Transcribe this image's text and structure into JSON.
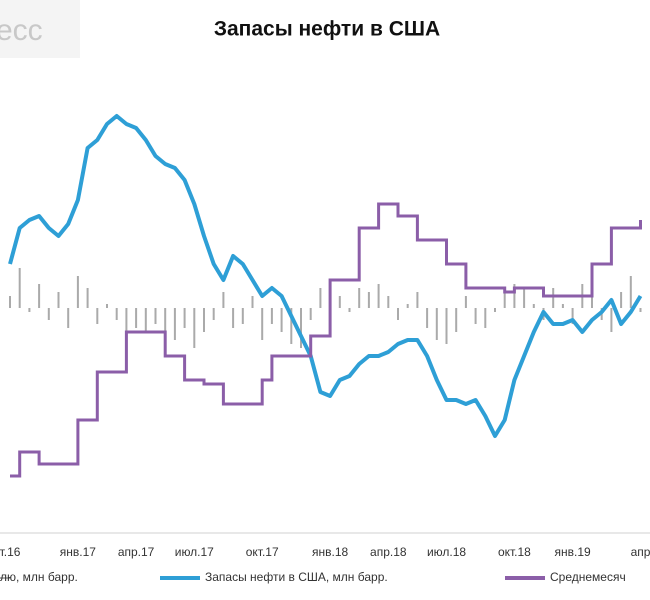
{
  "chart_data": {
    "type": "line",
    "title": "Запасы нефти в США",
    "watermark": "есс",
    "categories": [
      "т.16",
      null,
      null,
      null,
      null,
      null,
      null,
      "янв.17",
      null,
      null,
      null,
      null,
      null,
      "апр.17",
      null,
      null,
      null,
      null,
      null,
      "июл.17",
      null,
      null,
      null,
      null,
      null,
      null,
      "окт.17",
      null,
      null,
      null,
      null,
      null,
      null,
      "янв.18",
      null,
      null,
      null,
      null,
      null,
      "апр.18",
      null,
      null,
      null,
      null,
      null,
      "июл.18",
      null,
      null,
      null,
      null,
      null,
      null,
      "окт.18",
      null,
      null,
      null,
      null,
      null,
      "янв.19",
      null,
      null,
      null,
      null,
      null,
      null,
      "апр"
    ],
    "ylim": [
      -55,
      55
    ],
    "series": [
      {
        "name": "лю, млн барр.",
        "type": "bar",
        "color": "#aaaaaa",
        "values": [
          3,
          10,
          -1,
          6,
          -3,
          4,
          -5,
          8,
          5,
          -4,
          1,
          -3,
          -8,
          -5,
          -6,
          -4,
          -9,
          -8,
          -5,
          -10,
          -6,
          -3,
          4,
          -5,
          -4,
          3,
          -8,
          -4,
          -6,
          -9,
          -10,
          -3,
          5,
          4,
          3,
          -1,
          5,
          4,
          6,
          3,
          -3,
          1,
          4,
          -5,
          -8,
          -9,
          -6,
          3,
          -4,
          -5,
          -1,
          4,
          6,
          5,
          1,
          -3,
          5,
          1,
          -4,
          6,
          8,
          -3,
          -6,
          4,
          8,
          -1
        ]
      },
      {
        "name": "Запасы нефти в США, млн барр.",
        "type": "line",
        "color": "#2e9fd6",
        "values": [
          11,
          20,
          22,
          23,
          20,
          18,
          21,
          27,
          40,
          42,
          46,
          48,
          46,
          45,
          42,
          38,
          36,
          35,
          32,
          26,
          18,
          11,
          7,
          13,
          11,
          7,
          3,
          5,
          3,
          -2,
          -7,
          -12,
          -21,
          -22,
          -18,
          -17,
          -14,
          -12,
          -12,
          -11,
          -9,
          -8,
          -8,
          -12,
          -18,
          -23,
          -23,
          -24,
          -23,
          -27,
          -32,
          -28,
          -18,
          -12,
          -6,
          -1,
          -4,
          -4,
          -3,
          -6,
          -3,
          -1,
          2,
          -4,
          -1,
          3
        ]
      },
      {
        "name": "Среднемесяч",
        "type": "step",
        "color": "#8b5ea8",
        "values": [
          -42,
          -36,
          -36,
          -39,
          -39,
          -39,
          -39,
          -28,
          -28,
          -16,
          -16,
          -16,
          -6,
          -6,
          -6,
          -6,
          -12,
          -12,
          -18,
          -18,
          -19,
          -19,
          -24,
          -24,
          -24,
          -24,
          -18,
          -12,
          -12,
          -12,
          -12,
          -7,
          -7,
          7,
          7,
          7,
          20,
          20,
          26,
          26,
          23,
          23,
          17,
          17,
          17,
          11,
          11,
          5,
          5,
          5,
          5,
          4,
          5,
          5,
          5,
          3,
          3,
          3,
          3,
          3,
          11,
          11,
          20,
          20,
          20,
          22
        ]
      }
    ]
  }
}
